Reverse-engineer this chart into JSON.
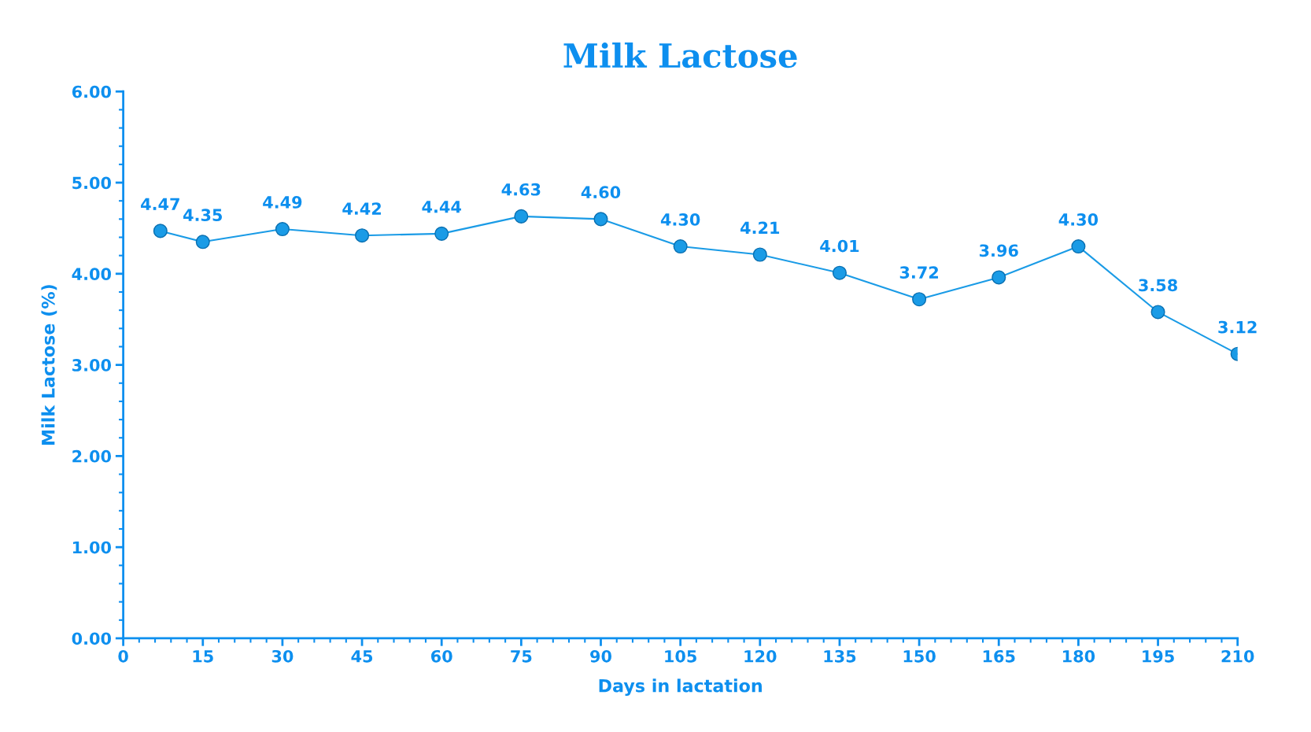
{
  "chart_data": {
    "type": "line",
    "title": "Milk Lactose",
    "xlabel": "Days in lactation",
    "ylabel": "Milk Lactose (%)",
    "x": [
      7,
      15,
      30,
      45,
      60,
      75,
      90,
      105,
      120,
      135,
      150,
      165,
      180,
      195,
      210
    ],
    "series": [
      {
        "color": "#1a9be6",
        "values": [
          4.47,
          4.35,
          4.49,
          4.42,
          4.44,
          4.63,
          4.6,
          4.3,
          4.21,
          4.01,
          3.72,
          3.96,
          4.3,
          3.58,
          3.12
        ],
        "value_labels": [
          "4.47",
          "4.35",
          "4.49",
          "4.42",
          "4.44",
          "4.63",
          "4.60",
          "4.30",
          "4.21",
          "4.01",
          "3.72",
          "3.96",
          "4.30",
          "3.58",
          "3.12"
        ]
      }
    ],
    "xlim": [
      0,
      210
    ],
    "xticks": [
      0,
      15,
      30,
      45,
      60,
      75,
      90,
      105,
      120,
      135,
      150,
      165,
      180,
      195,
      210
    ],
    "ylim": [
      0,
      6
    ],
    "yticks": [
      {
        "value": 0,
        "label": "0.00"
      },
      {
        "value": 1,
        "label": "1.00"
      },
      {
        "value": 2,
        "label": "2.00"
      },
      {
        "value": 3,
        "label": "3.00"
      },
      {
        "value": 4,
        "label": "4.00"
      },
      {
        "value": 5,
        "label": "5.00"
      },
      {
        "value": 6,
        "label": "6.00"
      }
    ],
    "marker": "circle",
    "line_style": "solid",
    "grid": false
  }
}
